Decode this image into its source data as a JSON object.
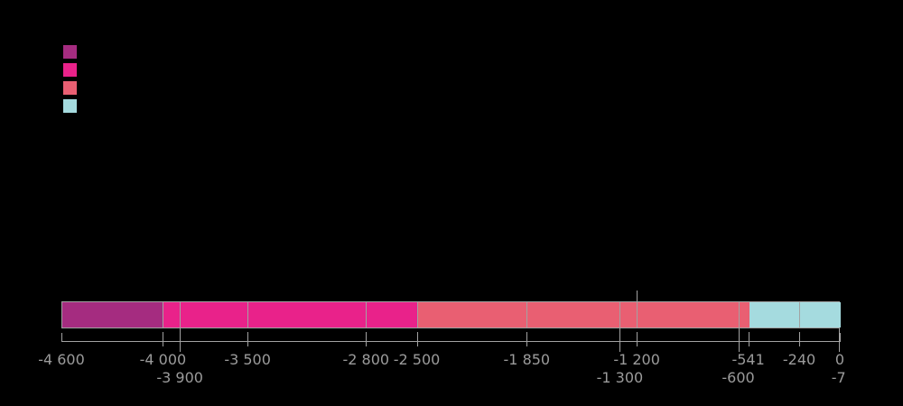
{
  "background_color": "#000000",
  "legend": {
    "position": "top-left",
    "swatches": [
      {
        "name": "eon-swatch-1",
        "color": "#A52C80"
      },
      {
        "name": "eon-swatch-2",
        "color": "#E9228A"
      },
      {
        "name": "eon-swatch-3",
        "color": "#E95F72"
      },
      {
        "name": "eon-swatch-4",
        "color": "#A5DBDF"
      }
    ]
  },
  "chart_data": {
    "type": "bar",
    "subtype": "horizontal-stacked-timeline",
    "title": "",
    "xlabel": "",
    "ylabel": "",
    "xlim": [
      -4600,
      0
    ],
    "grid": false,
    "legend_position": "top-left",
    "axis_color": "#A2A2A2",
    "label_color": "#9B9B9B",
    "segments": [
      {
        "start": -4600,
        "end": -4000,
        "color": "#A52C80"
      },
      {
        "start": -4000,
        "end": -2500,
        "color": "#E9228A"
      },
      {
        "start": -2500,
        "end": -541,
        "color": "#E95F72"
      },
      {
        "start": -541,
        "end": 0,
        "color": "#A5DBDF"
      }
    ],
    "dividers": [
      -4000,
      -3900,
      -3500,
      -2800,
      -2500,
      -1850,
      -1300,
      -1200,
      -600,
      -240
    ],
    "ticks": [
      {
        "value": -4600,
        "label": "-4 600",
        "row": 1,
        "edge": true
      },
      {
        "value": -4000,
        "label": "-4 000",
        "row": 1
      },
      {
        "value": -3900,
        "label": "-3 900",
        "row": 2
      },
      {
        "value": -3500,
        "label": "-3 500",
        "row": 1
      },
      {
        "value": -2800,
        "label": "-2 800",
        "row": 1
      },
      {
        "value": -2500,
        "label": "-2 500",
        "row": 1
      },
      {
        "value": -1850,
        "label": "-1 850",
        "row": 1
      },
      {
        "value": -1300,
        "label": "-1 300",
        "row": 2
      },
      {
        "value": -1200,
        "label": "-1 200",
        "row": 1,
        "marker_above_bar": true
      },
      {
        "value": -600,
        "label": "-600",
        "row": 2
      },
      {
        "value": -541,
        "label": "-541",
        "row": 1
      },
      {
        "value": -240,
        "label": "-240",
        "row": 1
      },
      {
        "value": -7,
        "label": "-7",
        "row": 2
      },
      {
        "value": 0,
        "label": "0",
        "row": 1,
        "edge": true
      }
    ]
  }
}
